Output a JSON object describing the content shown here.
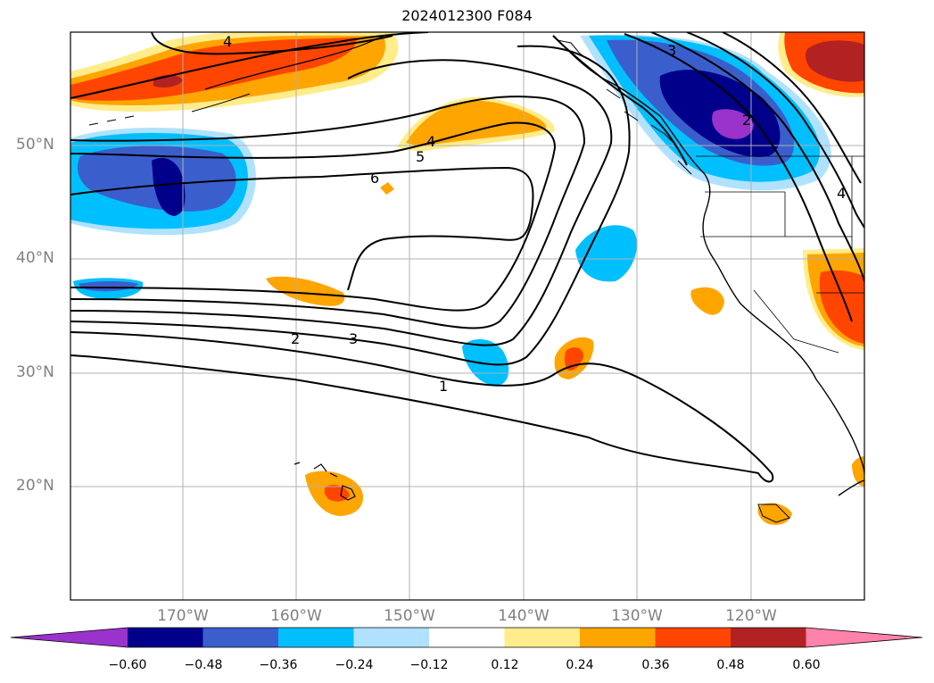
{
  "title": "2024012300 F084",
  "lat_labels": [
    "50°N",
    "40°N",
    "30°N",
    "20°N"
  ],
  "lon_labels": [
    "170°W",
    "160°W",
    "150°W",
    "140°W",
    "130°W",
    "120°W"
  ],
  "colorbar": {
    "colors": [
      "#9933cc",
      "#00008b",
      "#3a5fcd",
      "#00bfff",
      "#b0e2ff",
      "#ffffff",
      "#ffec8b",
      "#ffa500",
      "#ff4500",
      "#b22222",
      "#ff82ab"
    ],
    "tick_labels": [
      "−0.60",
      "−0.48",
      "−0.36",
      "−0.24",
      "−0.12",
      "0.12",
      "0.24",
      "0.36",
      "0.48",
      "0.60"
    ]
  },
  "contour_labels": [
    "4",
    "3",
    "2",
    "4",
    "5",
    "6",
    "2",
    "3",
    "1",
    "4"
  ],
  "map": {
    "projection": "equirectangular",
    "lon_range": [
      "180°W",
      "110°W"
    ],
    "lat_range": [
      "10°N",
      "60°N"
    ],
    "gridlines": true,
    "coastlines": true,
    "borders": true
  }
}
